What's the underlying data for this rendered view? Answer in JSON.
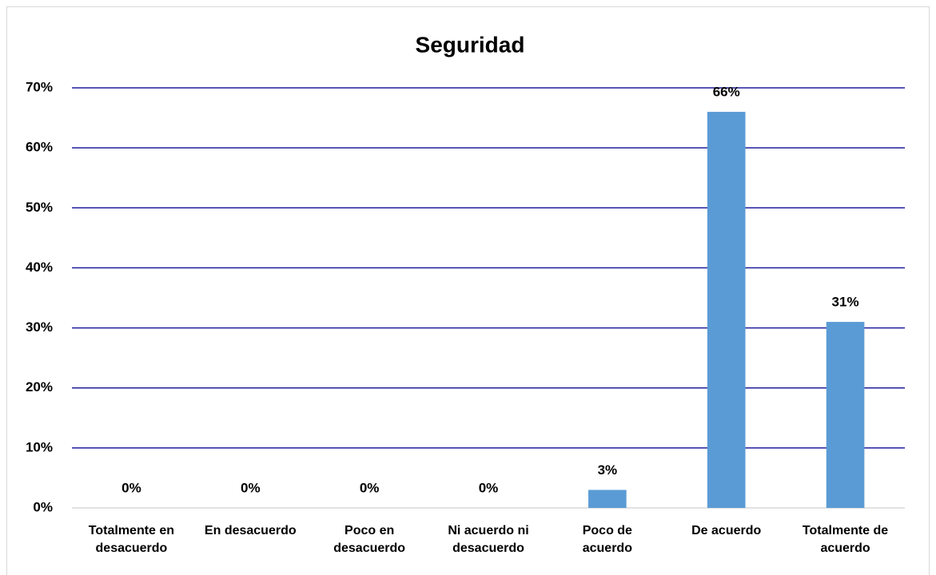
{
  "chart_data": {
    "type": "bar",
    "title": "Seguridad",
    "categories": [
      "Totalmente en desacuerdo",
      "En desacuerdo",
      "Poco en desacuerdo",
      "Ni acuerdo ni desacuerdo",
      "Poco de acuerdo",
      "De acuerdo",
      "Totalmente de acuerdo"
    ],
    "values": [
      0,
      0,
      0,
      0,
      3,
      66,
      31
    ],
    "value_labels": [
      "0%",
      "0%",
      "0%",
      "0%",
      "3%",
      "66%",
      "31%"
    ],
    "color": "#5b9bd5",
    "ylim": [
      0,
      70
    ],
    "yticks": [
      {
        "value": 0,
        "label": "0%"
      },
      {
        "value": 10,
        "label": "10%"
      },
      {
        "value": 20,
        "label": "20%"
      },
      {
        "value": 30,
        "label": "30%"
      },
      {
        "value": 40,
        "label": "40%"
      },
      {
        "value": 50,
        "label": "50%"
      },
      {
        "value": 60,
        "label": "60%"
      },
      {
        "value": 70,
        "label": "70%"
      }
    ],
    "grid": true
  }
}
